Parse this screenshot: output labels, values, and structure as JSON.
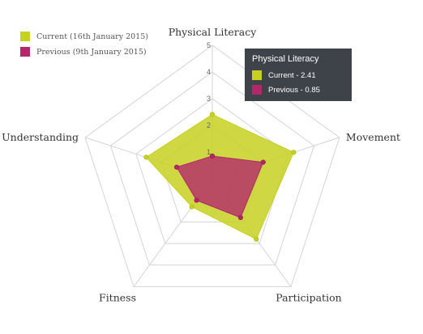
{
  "chart_data": {
    "type": "radar",
    "axes": [
      "Physical Literacy",
      "Movement",
      "Participation",
      "Fitness",
      "Understanding"
    ],
    "scale": {
      "min": 0,
      "max": 5,
      "ticks": [
        "1",
        "2",
        "3",
        "4",
        "5"
      ]
    },
    "series": [
      {
        "name": "Current (16th January 2015)",
        "values": [
          2.41,
          3.2,
          2.8,
          1.3,
          2.6
        ],
        "color": "#c7d122"
      },
      {
        "name": "Previous (9th January 2015)",
        "values": [
          0.85,
          2.0,
          1.8,
          1.0,
          1.4
        ],
        "color": "#b3286a"
      }
    ]
  },
  "tooltip": {
    "title": "Physical Literacy",
    "rows": [
      "Current - 2.41",
      "Previous - 0.85"
    ]
  }
}
